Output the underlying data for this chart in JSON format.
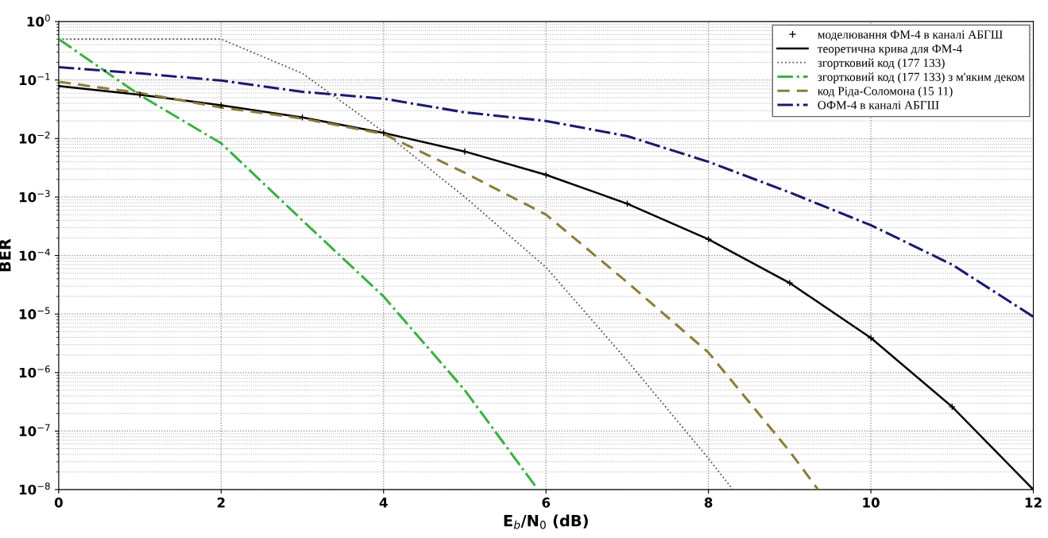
{
  "chart_data": {
    "type": "line",
    "xlabel": "E$_{b}$/N$_{0}$ (dB)",
    "ylabel": "BER",
    "log": "y",
    "xlim": [
      0,
      12
    ],
    "xticks": [
      0,
      2,
      4,
      6,
      8,
      10,
      12
    ],
    "ylim": [
      1e-08,
      1
    ],
    "yticks": [
      {
        "value": 1e-08,
        "label": "10$^{−8}$"
      },
      {
        "value": 1e-07,
        "label": "10$^{−7}$"
      },
      {
        "value": 1e-06,
        "label": "10$^{−6}$"
      },
      {
        "value": 1e-05,
        "label": "10$^{−5}$"
      },
      {
        "value": 0.0001,
        "label": "10$^{−4}$"
      },
      {
        "value": 0.001,
        "label": "10$^{−3}$"
      },
      {
        "value": 0.01,
        "label": "10$^{−2}$"
      },
      {
        "value": 0.1,
        "label": "10$^{−1}$"
      },
      {
        "value": 1,
        "label": "10$^{0}$"
      }
    ],
    "grid": true,
    "legend": "top right",
    "series": [
      {
        "name": "моделювання ФМ-4 в каналі АБГШ",
        "type": "scatter",
        "marker": "cross",
        "color": "#000000",
        "x": [
          0,
          1,
          2,
          3,
          4,
          5,
          6,
          7,
          8,
          9,
          10,
          11,
          12
        ],
        "values": [
          0.079,
          0.056,
          0.037,
          0.023,
          0.0125,
          0.006,
          0.0024,
          0.00077,
          0.00019,
          3.4e-05,
          3.9e-06,
          2.6e-07,
          1e-08
        ]
      },
      {
        "name": "теоретична крива для ФМ-4",
        "line_style": "solid",
        "color": "#000000",
        "x": [
          0,
          1,
          2,
          3,
          4,
          5,
          6,
          7,
          8,
          9,
          10,
          11,
          12
        ],
        "values": [
          0.079,
          0.056,
          0.037,
          0.023,
          0.0125,
          0.006,
          0.0024,
          0.00077,
          0.00019,
          3.4e-05,
          3.9e-06,
          2.6e-07,
          1e-08
        ]
      },
      {
        "name": "згортковий код (177 133)",
        "line_style": "dotted",
        "color": "#555555",
        "x": [
          0,
          2,
          3,
          4,
          5,
          6,
          7,
          8,
          8.3
        ],
        "values": [
          0.5,
          0.5,
          0.13,
          0.013,
          0.001,
          6.3e-05,
          1.6e-06,
          3.4e-08,
          1e-08
        ]
      },
      {
        "name": "згортковий код (177 133) з м'яким деком",
        "line_style": "dashdot",
        "color": "#3cb043",
        "x": [
          0,
          1,
          2,
          3,
          4,
          5,
          5.9
        ],
        "values": [
          0.5,
          0.055,
          0.0083,
          0.0004,
          2e-05,
          5e-07,
          1e-08
        ]
      },
      {
        "name": "код Ріда-Соломона (15 11)",
        "line_style": "dashed",
        "color": "#8b7d3a",
        "x": [
          0,
          1,
          2,
          3,
          4,
          5,
          6,
          7,
          8,
          9,
          9.35
        ],
        "values": [
          0.093,
          0.06,
          0.034,
          0.022,
          0.012,
          0.0026,
          0.0005,
          3.5e-05,
          2.2e-06,
          4.5e-08,
          1e-08
        ]
      },
      {
        "name": "ОФМ-4 в каналі АБГШ",
        "line_style": "dashdot",
        "color": "#1a1a6e",
        "x": [
          0,
          1,
          2,
          3,
          4,
          5,
          6,
          7,
          8,
          9,
          10,
          11,
          12
        ],
        "values": [
          0.166,
          0.13,
          0.098,
          0.063,
          0.048,
          0.028,
          0.02,
          0.011,
          0.004,
          0.0012,
          0.00033,
          7e-05,
          9e-06
        ]
      }
    ]
  }
}
